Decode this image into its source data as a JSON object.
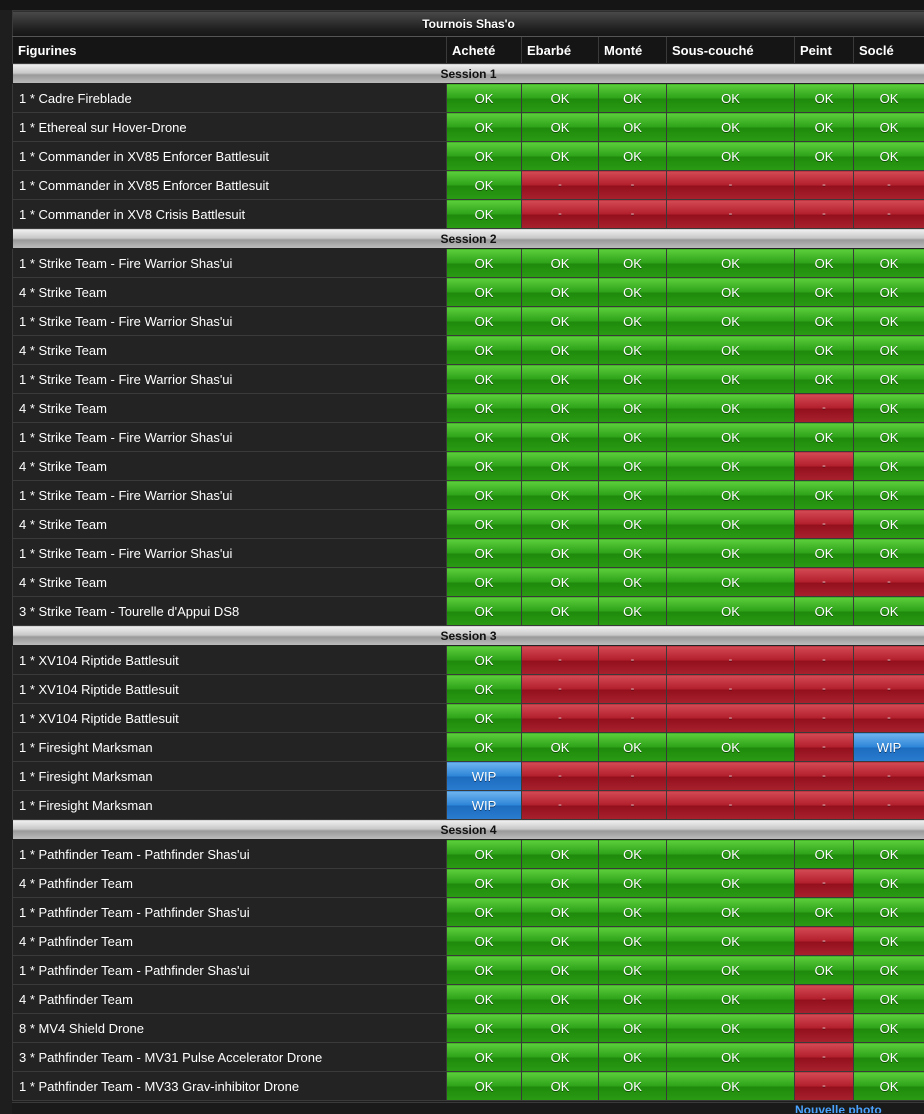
{
  "table": {
    "title": "Tournois Shas'o",
    "headers": [
      "Figurines",
      "Acheté",
      "Ebarbé",
      "Monté",
      "Sous-couché",
      "Peint",
      "Soclé"
    ],
    "sessions": [
      {
        "label": "Session 1",
        "rows": [
          {
            "name": "1 * Cadre Fireblade",
            "cells": [
              "OK",
              "OK",
              "OK",
              "OK",
              "OK",
              "OK"
            ]
          },
          {
            "name": "1 * Ethereal sur Hover-Drone",
            "cells": [
              "OK",
              "OK",
              "OK",
              "OK",
              "OK",
              "OK"
            ]
          },
          {
            "name": "1 * Commander in XV85 Enforcer Battlesuit",
            "cells": [
              "OK",
              "OK",
              "OK",
              "OK",
              "OK",
              "OK"
            ]
          },
          {
            "name": "1 * Commander in XV85 Enforcer Battlesuit",
            "cells": [
              "OK",
              "-",
              "-",
              "-",
              "-",
              "-"
            ]
          },
          {
            "name": "1 * Commander in XV8 Crisis Battlesuit",
            "cells": [
              "OK",
              "-",
              "-",
              "-",
              "-",
              "-"
            ]
          }
        ]
      },
      {
        "label": "Session 2",
        "rows": [
          {
            "name": "1 * Strike Team - Fire Warrior Shas'ui",
            "cells": [
              "OK",
              "OK",
              "OK",
              "OK",
              "OK",
              "OK"
            ]
          },
          {
            "name": "4 * Strike Team",
            "cells": [
              "OK",
              "OK",
              "OK",
              "OK",
              "OK",
              "OK"
            ]
          },
          {
            "name": "1 * Strike Team - Fire Warrior Shas'ui",
            "cells": [
              "OK",
              "OK",
              "OK",
              "OK",
              "OK",
              "OK"
            ]
          },
          {
            "name": "4 * Strike Team",
            "cells": [
              "OK",
              "OK",
              "OK",
              "OK",
              "OK",
              "OK"
            ]
          },
          {
            "name": "1 * Strike Team - Fire Warrior Shas'ui",
            "cells": [
              "OK",
              "OK",
              "OK",
              "OK",
              "OK",
              "OK"
            ]
          },
          {
            "name": "4 * Strike Team",
            "cells": [
              "OK",
              "OK",
              "OK",
              "OK",
              "-",
              "OK"
            ]
          },
          {
            "name": "1 * Strike Team - Fire Warrior Shas'ui",
            "cells": [
              "OK",
              "OK",
              "OK",
              "OK",
              "OK",
              "OK"
            ]
          },
          {
            "name": "4 * Strike Team",
            "cells": [
              "OK",
              "OK",
              "OK",
              "OK",
              "-",
              "OK"
            ]
          },
          {
            "name": "1 * Strike Team - Fire Warrior Shas'ui",
            "cells": [
              "OK",
              "OK",
              "OK",
              "OK",
              "OK",
              "OK"
            ]
          },
          {
            "name": "4 * Strike Team",
            "cells": [
              "OK",
              "OK",
              "OK",
              "OK",
              "-",
              "OK"
            ]
          },
          {
            "name": "1 * Strike Team - Fire Warrior Shas'ui",
            "cells": [
              "OK",
              "OK",
              "OK",
              "OK",
              "OK",
              "OK"
            ]
          },
          {
            "name": "4 * Strike Team",
            "cells": [
              "OK",
              "OK",
              "OK",
              "OK",
              "-",
              "-"
            ]
          },
          {
            "name": "3 * Strike Team - Tourelle d'Appui DS8",
            "cells": [
              "OK",
              "OK",
              "OK",
              "OK",
              "OK",
              "OK"
            ]
          }
        ]
      },
      {
        "label": "Session 3",
        "rows": [
          {
            "name": "1 * XV104 Riptide Battlesuit",
            "cells": [
              "OK",
              "-",
              "-",
              "-",
              "-",
              "-"
            ]
          },
          {
            "name": "1 * XV104 Riptide Battlesuit",
            "cells": [
              "OK",
              "-",
              "-",
              "-",
              "-",
              "-"
            ]
          },
          {
            "name": "1 * XV104 Riptide Battlesuit",
            "cells": [
              "OK",
              "-",
              "-",
              "-",
              "-",
              "-"
            ]
          },
          {
            "name": "1 * Firesight Marksman",
            "cells": [
              "OK",
              "OK",
              "OK",
              "OK",
              "-",
              "WIP"
            ]
          },
          {
            "name": "1 * Firesight Marksman",
            "cells": [
              "WIP",
              "-",
              "-",
              "-",
              "-",
              "-"
            ]
          },
          {
            "name": "1 * Firesight Marksman",
            "cells": [
              "WIP",
              "-",
              "-",
              "-",
              "-",
              "-"
            ]
          }
        ]
      },
      {
        "label": "Session 4",
        "rows": [
          {
            "name": "1 * Pathfinder Team - Pathfinder Shas'ui",
            "cells": [
              "OK",
              "OK",
              "OK",
              "OK",
              "OK",
              "OK"
            ]
          },
          {
            "name": "4 * Pathfinder Team",
            "cells": [
              "OK",
              "OK",
              "OK",
              "OK",
              "-",
              "OK"
            ]
          },
          {
            "name": "1 * Pathfinder Team - Pathfinder Shas'ui",
            "cells": [
              "OK",
              "OK",
              "OK",
              "OK",
              "OK",
              "OK"
            ]
          },
          {
            "name": "4 * Pathfinder Team",
            "cells": [
              "OK",
              "OK",
              "OK",
              "OK",
              "-",
              "OK"
            ]
          },
          {
            "name": "1 * Pathfinder Team - Pathfinder Shas'ui",
            "cells": [
              "OK",
              "OK",
              "OK",
              "OK",
              "OK",
              "OK"
            ]
          },
          {
            "name": "4 * Pathfinder Team",
            "cells": [
              "OK",
              "OK",
              "OK",
              "OK",
              "-",
              "OK"
            ]
          },
          {
            "name": "8 * MV4 Shield Drone",
            "cells": [
              "OK",
              "OK",
              "OK",
              "OK",
              "-",
              "OK"
            ]
          },
          {
            "name": "3 * Pathfinder Team - MV31 Pulse Accelerator Drone",
            "cells": [
              "OK",
              "OK",
              "OK",
              "OK",
              "-",
              "OK"
            ]
          },
          {
            "name": "1 * Pathfinder Team - MV33 Grav-inhibitor Drone",
            "cells": [
              "OK",
              "OK",
              "OK",
              "OK",
              "-",
              "OK"
            ]
          }
        ]
      }
    ]
  },
  "status_colors": {
    "OK": "#2fa31a",
    "-": "#b3202d",
    "WIP": "#2e86d8"
  },
  "footer": {
    "link_text": "Nouvelle photo"
  }
}
